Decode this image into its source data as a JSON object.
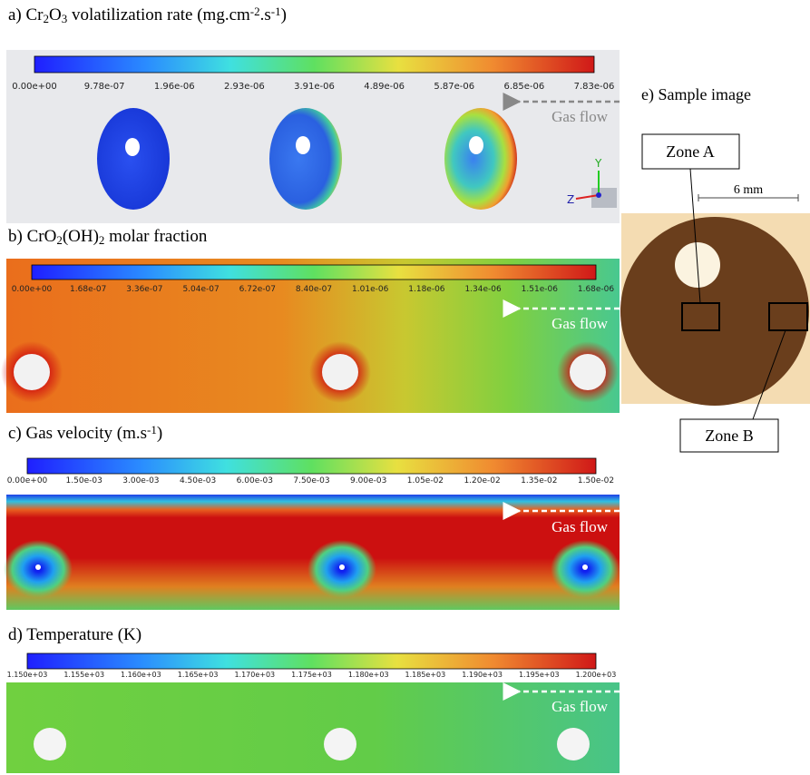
{
  "panels": [
    {
      "title": [
        {
          "text": "a) Cr"
        },
        {
          "sub": "2"
        },
        {
          "text": "O"
        },
        {
          "sub": "3"
        },
        {
          "text": " volatilization rate (mg.cm"
        },
        {
          "sup": "-2"
        },
        {
          "text": ".s"
        },
        {
          "sup": "-1"
        },
        {
          "text": ")"
        }
      ],
      "colorbar_labels": [
        "0.00e+00",
        "9.78e-07",
        "1.96e-06",
        "2.93e-06",
        "3.91e-06",
        "4.89e-06",
        "5.87e-06",
        "6.85e-06",
        "7.83e-06"
      ],
      "gas_flow": "Gas flow",
      "axes": [
        "Y",
        "Z"
      ]
    },
    {
      "title": [
        {
          "text": "b) CrO"
        },
        {
          "sub": "2"
        },
        {
          "text": "(OH)"
        },
        {
          "sub": "2"
        },
        {
          "text": " molar fraction"
        }
      ],
      "colorbar_labels": [
        "0.00e+00",
        "1.68e-07",
        "3.36e-07",
        "5.04e-07",
        "6.72e-07",
        "8.40e-07",
        "1.01e-06",
        "1.18e-06",
        "1.34e-06",
        "1.51e-06",
        "1.68e-06"
      ],
      "gas_flow": "Gas flow"
    },
    {
      "title": [
        {
          "text": "c) Gas velocity (m.s"
        },
        {
          "sup": "-1"
        },
        {
          "text": ")"
        }
      ],
      "colorbar_labels": [
        "0.00e+00",
        "1.50e-03",
        "3.00e-03",
        "4.50e-03",
        "6.00e-03",
        "7.50e-03",
        "9.00e-03",
        "1.05e-02",
        "1.20e-02",
        "1.35e-02",
        "1.50e-02"
      ],
      "gas_flow": "Gas flow"
    },
    {
      "title": [
        {
          "text": "d) Temperature (K)"
        }
      ],
      "colorbar_labels": [
        "1.150e+03",
        "1.155e+03",
        "1.160e+03",
        "1.165e+03",
        "1.170e+03",
        "1.175e+03",
        "1.180e+03",
        "1.185e+03",
        "1.190e+03",
        "1.195e+03",
        "1.200e+03"
      ],
      "gas_flow": "Gas flow"
    }
  ],
  "sample": {
    "title": "e) Sample image",
    "zone_a": "Zone A",
    "zone_b": "Zone B",
    "scale": "6 mm"
  }
}
